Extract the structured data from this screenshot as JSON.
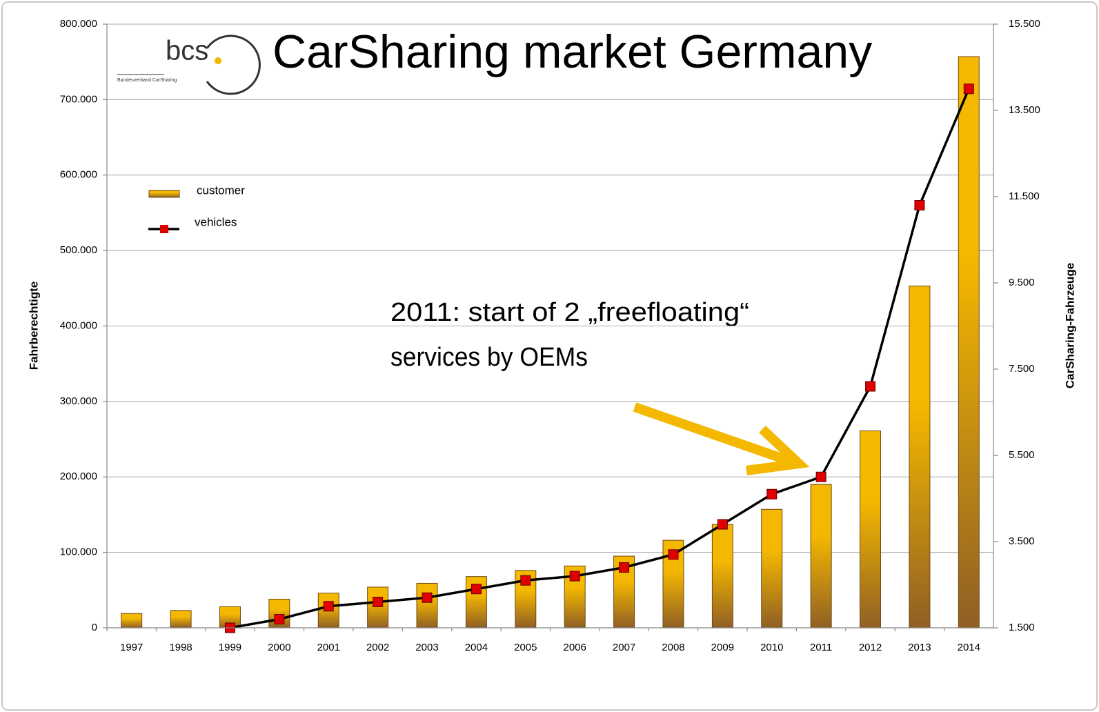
{
  "chart_data": {
    "type": "bar_line",
    "title": "CarSharing market Germany",
    "logo": {
      "text": "bcs",
      "subtitle": "Bundesverband CarSharing"
    },
    "annotation": [
      "2011: start of 2 „freefloating“",
      "services by OEMs"
    ],
    "ylabel": "Fahrberechtigte",
    "y2label": "CarSharing-Fahrzeuge",
    "categories": [
      "1997",
      "1998",
      "1999",
      "2000",
      "2001",
      "2002",
      "2003",
      "2004",
      "2005",
      "2006",
      "2007",
      "2008",
      "2009",
      "2010",
      "2011",
      "2012",
      "2013",
      "2014"
    ],
    "series": [
      {
        "name": "customer",
        "type": "bar",
        "color": "#f5b800",
        "axis": "y",
        "values": [
          19000,
          23000,
          28000,
          38000,
          46000,
          54000,
          59000,
          68000,
          76000,
          82000,
          95000,
          116000,
          137000,
          157000,
          190000,
          261000,
          453000,
          757000
        ]
      },
      {
        "name": "vehicles",
        "type": "line",
        "color": "#000000",
        "marker_color": "#e00000",
        "axis": "y2",
        "values": [
          null,
          null,
          1500,
          1700,
          2000,
          2100,
          2200,
          2400,
          2600,
          2700,
          2900,
          3200,
          3900,
          4600,
          5000,
          7100,
          11300,
          14000
        ]
      }
    ],
    "ylim": [
      0,
      800000
    ],
    "yticks": [
      0,
      {
        "value": 100000,
        "label": "100.000"
      },
      {
        "value": 200000,
        "label": "200.000"
      },
      {
        "value": 300000,
        "label": "300.000"
      },
      {
        "value": 400000,
        "label": "400.000"
      },
      {
        "value": 500000,
        "label": "500.000"
      },
      {
        "value": 600000,
        "label": "600.000"
      },
      {
        "value": 700000,
        "label": "700.000"
      },
      {
        "value": 800000,
        "label": "800.000"
      }
    ],
    "y2lim": [
      1500,
      15500
    ],
    "y2ticks": [
      {
        "value": 1500,
        "label": "1.500"
      },
      {
        "value": 3500,
        "label": "3.500"
      },
      {
        "value": 5500,
        "label": "5.500"
      },
      {
        "value": 7500,
        "label": "7.500"
      },
      {
        "value": 9500,
        "label": "9.500"
      },
      {
        "value": 11500,
        "label": "11.500"
      },
      {
        "value": 13500,
        "label": "13.500"
      },
      {
        "value": 15500,
        "label": "15.500"
      }
    ],
    "grid": true
  }
}
